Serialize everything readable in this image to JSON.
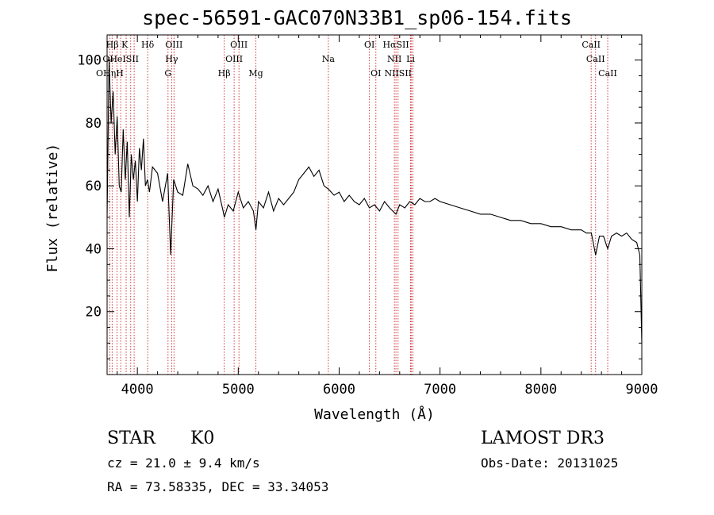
{
  "header": {
    "title": "spec-56591-GAC070N33B1_sp06-154.fits"
  },
  "info": {
    "object_class": "STAR",
    "subclass": "K0",
    "survey": "LAMOST DR3",
    "redshift": "cz = 21.0 ± 9.4 km/s",
    "obs_date": "Obs-Date: 20131025",
    "coords": "RA =  73.58335, DEC =  33.34053"
  },
  "colors": {
    "line_marker": "#cc2222",
    "spectrum": "#000000"
  },
  "chart_data": {
    "type": "line",
    "title": "spec-56591-GAC070N33B1_sp06-154.fits",
    "xlabel": "Wavelength (Å)",
    "ylabel": "Flux (relative)",
    "xlim": [
      3700,
      9000
    ],
    "ylim": [
      0,
      108
    ],
    "xticks": [
      4000,
      5000,
      6000,
      7000,
      8000,
      9000
    ],
    "yticks": [
      20,
      40,
      60,
      80,
      100
    ],
    "grid": false,
    "series": [
      {
        "name": "spectrum",
        "x": [
          3700,
          3720,
          3740,
          3760,
          3780,
          3800,
          3820,
          3840,
          3860,
          3880,
          3900,
          3920,
          3940,
          3960,
          3980,
          4000,
          4020,
          4040,
          4060,
          4080,
          4100,
          4120,
          4150,
          4200,
          4250,
          4300,
          4330,
          4360,
          4400,
          4450,
          4500,
          4550,
          4600,
          4650,
          4700,
          4750,
          4800,
          4850,
          4862,
          4900,
          4950,
          5000,
          5050,
          5100,
          5150,
          5175,
          5200,
          5250,
          5300,
          5350,
          5400,
          5450,
          5500,
          5550,
          5600,
          5650,
          5700,
          5750,
          5800,
          5850,
          5893,
          5950,
          6000,
          6050,
          6100,
          6150,
          6200,
          6250,
          6300,
          6350,
          6400,
          6450,
          6500,
          6563,
          6600,
          6650,
          6700,
          6750,
          6800,
          6850,
          6900,
          6950,
          7000,
          7100,
          7200,
          7300,
          7400,
          7500,
          7600,
          7700,
          7800,
          7900,
          8000,
          8100,
          8200,
          8300,
          8400,
          8450,
          8500,
          8542,
          8580,
          8620,
          8662,
          8700,
          8750,
          8800,
          8850,
          8900,
          8950,
          8980,
          9000
        ],
        "y": [
          50,
          100,
          80,
          90,
          70,
          82,
          60,
          58,
          78,
          62,
          74,
          50,
          70,
          62,
          68,
          55,
          72,
          65,
          75,
          60,
          62,
          58,
          66,
          64,
          55,
          64,
          38,
          62,
          58,
          57,
          67,
          60,
          59,
          57,
          60,
          55,
          59,
          52,
          50,
          54,
          52,
          58,
          53,
          55,
          52,
          46,
          55,
          53,
          58,
          52,
          56,
          54,
          56,
          58,
          62,
          64,
          66,
          63,
          65,
          60,
          59,
          57,
          58,
          55,
          57,
          55,
          54,
          56,
          53,
          54,
          52,
          55,
          53,
          51,
          54,
          53,
          55,
          54,
          56,
          55,
          55,
          56,
          55,
          54,
          53,
          52,
          51,
          51,
          50,
          49,
          49,
          48,
          48,
          47,
          47,
          46,
          46,
          45,
          45,
          38,
          44,
          44,
          40,
          44,
          45,
          44,
          45,
          43,
          42,
          38,
          10
        ]
      }
    ],
    "line_markers": [
      {
        "label": "Hβ K",
        "wavelength": 3798
      },
      {
        "label": "Hδ",
        "wavelength": 4102
      },
      {
        "label": "OIII",
        "wavelength": 4363
      },
      {
        "label": "OIII",
        "wavelength": 5007
      },
      {
        "label": "OI",
        "wavelength": 6300
      },
      {
        "label": "HαSII",
        "wavelength": 6563
      },
      {
        "label": "CaII",
        "wavelength": 8498
      },
      {
        "label": "OHeISII",
        "wavelength": 3835
      },
      {
        "label": "Hγ",
        "wavelength": 4340
      },
      {
        "label": "OIII",
        "wavelength": 4959
      },
      {
        "label": "Na",
        "wavelength": 5893
      },
      {
        "label": "NII",
        "wavelength": 6548
      },
      {
        "label": "Li",
        "wavelength": 6708
      },
      {
        "label": "CaII",
        "wavelength": 8542
      },
      {
        "label": "OHηH",
        "wavelength": 3727
      },
      {
        "label": "G",
        "wavelength": 4304
      },
      {
        "label": "Hβ",
        "wavelength": 4861
      },
      {
        "label": "Mg",
        "wavelength": 5175
      },
      {
        "label": "OI",
        "wavelength": 6364
      },
      {
        "label": "NIISII",
        "wavelength": 6584
      },
      {
        "label": "CaII",
        "wavelength": 8662
      }
    ],
    "extra_marker_lines": [
      3750,
      3889,
      3934,
      3968,
      6717,
      6731
    ]
  }
}
